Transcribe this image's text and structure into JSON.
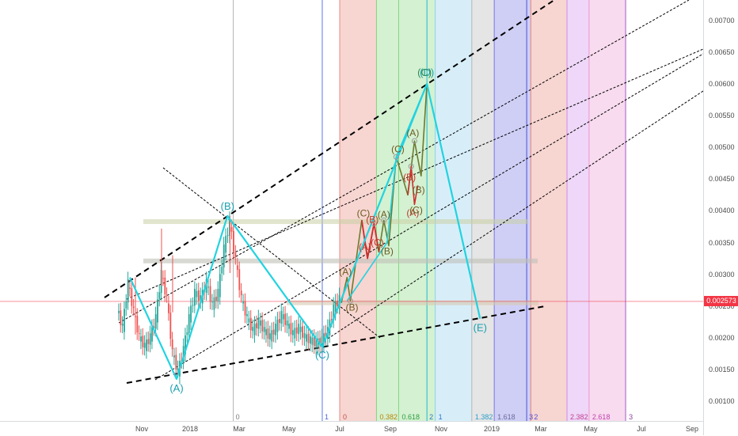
{
  "colors": {
    "up": "#26a69a",
    "down": "#ef5350",
    "impulse": "#22d3e0",
    "price_line": "#f23645",
    "badge_bg": "#f23645"
  },
  "price_axis": {
    "ticks": [
      "0.00100",
      "0.00150",
      "0.00200",
      "0.00250",
      "0.00300",
      "0.00350",
      "0.00400",
      "0.00450",
      "0.00500",
      "0.00550",
      "0.00600",
      "0.00650",
      "0.00700"
    ],
    "current_price": "0.002573"
  },
  "time_axis": {
    "ticks": [
      "Nov",
      "2018",
      "Mar",
      "May",
      "Jul",
      "Sep",
      "Nov",
      "2019",
      "Mar",
      "May",
      "Jul",
      "Sep"
    ]
  },
  "fib_time_zones": {
    "labels": [
      "0",
      "0.382",
      "0.618",
      "1",
      "1.382",
      "1.618",
      "2",
      "2.382",
      "2.618",
      "3"
    ],
    "left_labels": [
      "0",
      "1",
      "2",
      "3"
    ],
    "colors": [
      "#e57368",
      "#72d06a",
      "#72d06a",
      "#79c8ec",
      "#a8a8a8",
      "#6060e0",
      "#e57368",
      "#c879e8",
      "#e888c8"
    ]
  },
  "wave_labels": {
    "primary": [
      "(A)",
      "(B)",
      "(C)",
      "(D)",
      "(E)"
    ],
    "primary_alt": "(C)",
    "sub_red": [
      "(A)",
      "(B)",
      "(C)",
      "(A)",
      "(B)"
    ],
    "sub_dark": [
      "(A)",
      "(B)",
      "(C)",
      "(A)",
      "(B)",
      "(C)",
      "(A)",
      "(B)",
      "(C)"
    ]
  },
  "chart_data": {
    "type": "candlestick",
    "title": "",
    "xlabel": "",
    "ylabel": "",
    "ylim": [
      0.00085,
      0.0076
    ],
    "x_range": [
      "2017-09-25",
      "2019-10-01"
    ],
    "price_line": 0.002573,
    "impulse_path": [
      {
        "date": "2017-10-17",
        "price": 0.00295
      },
      {
        "date": "2017-12-15",
        "price": 0.00135,
        "label": "(A)"
      },
      {
        "date": "2018-02-15",
        "price": 0.00392,
        "label": "(B)"
      },
      {
        "date": "2018-06-10",
        "price": 0.00185,
        "label": "(C)"
      },
      {
        "date": "2018-10-15",
        "price": 0.006,
        "label": "(D)"
      },
      {
        "date": "2018-12-18",
        "price": 0.0023,
        "label": "(E)"
      }
    ],
    "close_series": [
      {
        "date": "2017-10-01",
        "price": 0.00245
      },
      {
        "date": "2017-10-08",
        "price": 0.00215
      },
      {
        "date": "2017-10-15",
        "price": 0.00285
      },
      {
        "date": "2017-10-22",
        "price": 0.0024
      },
      {
        "date": "2017-10-29",
        "price": 0.002
      },
      {
        "date": "2017-11-05",
        "price": 0.00185
      },
      {
        "date": "2017-11-12",
        "price": 0.002
      },
      {
        "date": "2017-11-19",
        "price": 0.0023
      },
      {
        "date": "2017-11-26",
        "price": 0.003
      },
      {
        "date": "2017-12-03",
        "price": 0.0026
      },
      {
        "date": "2017-12-10",
        "price": 0.00175
      },
      {
        "date": "2017-12-17",
        "price": 0.00145
      },
      {
        "date": "2017-12-24",
        "price": 0.0018
      },
      {
        "date": "2017-12-31",
        "price": 0.0023
      },
      {
        "date": "2018-01-07",
        "price": 0.0027
      },
      {
        "date": "2018-01-14",
        "price": 0.0026
      },
      {
        "date": "2018-01-21",
        "price": 0.00285
      },
      {
        "date": "2018-01-28",
        "price": 0.0025
      },
      {
        "date": "2018-02-04",
        "price": 0.0027
      },
      {
        "date": "2018-02-11",
        "price": 0.0034
      },
      {
        "date": "2018-02-18",
        "price": 0.0038
      },
      {
        "date": "2018-02-25",
        "price": 0.0032
      },
      {
        "date": "2018-03-04",
        "price": 0.0026
      },
      {
        "date": "2018-03-11",
        "price": 0.0023
      },
      {
        "date": "2018-03-18",
        "price": 0.0021
      },
      {
        "date": "2018-03-25",
        "price": 0.00225
      },
      {
        "date": "2018-04-01",
        "price": 0.0021
      },
      {
        "date": "2018-04-08",
        "price": 0.002
      },
      {
        "date": "2018-04-15",
        "price": 0.00215
      },
      {
        "date": "2018-04-22",
        "price": 0.00235
      },
      {
        "date": "2018-04-29",
        "price": 0.0022
      },
      {
        "date": "2018-05-06",
        "price": 0.00205
      },
      {
        "date": "2018-05-13",
        "price": 0.00215
      },
      {
        "date": "2018-05-20",
        "price": 0.002
      },
      {
        "date": "2018-05-27",
        "price": 0.00195
      },
      {
        "date": "2018-06-03",
        "price": 0.0019
      },
      {
        "date": "2018-06-10",
        "price": 0.00195
      },
      {
        "date": "2018-06-17",
        "price": 0.0021
      },
      {
        "date": "2018-06-24",
        "price": 0.00245
      },
      {
        "date": "2018-07-01",
        "price": 0.0026
      }
    ],
    "fib_time_zones": [
      {
        "label": "0",
        "date": "2018-07-01"
      },
      {
        "label": "0.382",
        "date": "2018-08-15"
      },
      {
        "label": "0.618",
        "date": "2018-09-11"
      },
      {
        "label": "1",
        "date": "2018-10-25"
      },
      {
        "label": "1.382",
        "date": "2018-12-08"
      },
      {
        "label": "1.618",
        "date": "2019-01-04"
      },
      {
        "label": "2",
        "date": "2019-02-17"
      },
      {
        "label": "2.382",
        "date": "2019-04-02"
      },
      {
        "label": "2.618",
        "date": "2019-04-29"
      },
      {
        "label": "3",
        "date": "2019-06-12"
      }
    ],
    "horizontal_zones": [
      0.00383,
      0.00321,
      0.00255
    ],
    "grid": false
  }
}
